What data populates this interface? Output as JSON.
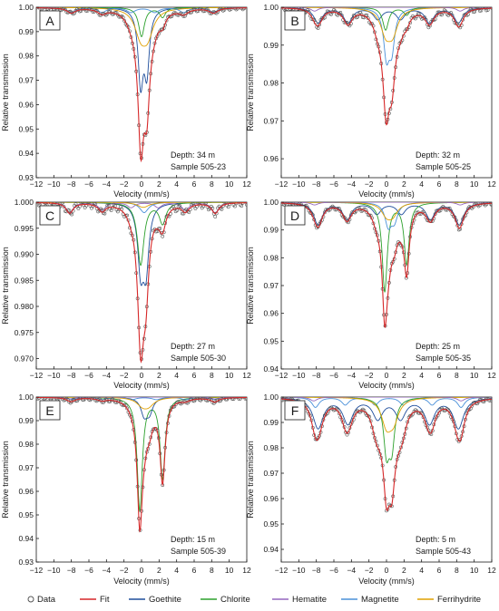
{
  "figure": {
    "legend": [
      {
        "label": "Data",
        "kind": "marker",
        "color": "#555555"
      },
      {
        "label": "Fit",
        "kind": "line",
        "color": "#d62728"
      },
      {
        "label": "Goethite",
        "kind": "line",
        "color": "#1f4e9c"
      },
      {
        "label": "Chlorite",
        "kind": "line",
        "color": "#2ca02c"
      },
      {
        "label": "Hematite",
        "kind": "line",
        "color": "#9467bd"
      },
      {
        "label": "Magnetite",
        "kind": "line",
        "color": "#4a90d9"
      },
      {
        "label": "Ferrihydrite",
        "kind": "line",
        "color": "#e0a000"
      }
    ]
  },
  "chart_data": [
    {
      "type": "scatter",
      "panel_label": "A",
      "xlabel": "Velocity (mm/s)",
      "ylabel": "Relative transmission",
      "xlim": [
        -12,
        12
      ],
      "ylim": [
        0.93,
        1.0
      ],
      "xticks": [
        -12,
        -10,
        -8,
        -6,
        -4,
        -2,
        0,
        2,
        4,
        6,
        8,
        10,
        12
      ],
      "yticks": [
        0.93,
        0.94,
        0.95,
        0.96,
        0.97,
        0.98,
        0.99,
        1.0
      ],
      "yticklabels": [
        "0.93",
        "0.94",
        "0.95",
        "0.96",
        "0.97",
        "0.98",
        "0.99",
        "1.00"
      ],
      "annotation": [
        "Depth: 34 m",
        "Sample 505-23"
      ],
      "components": [
        {
          "name": "Goethite",
          "peaks": [
            [
              -0.1,
              0.03
            ],
            [
              0.6,
              0.025
            ]
          ],
          "width": 0.35
        },
        {
          "name": "Chlorite",
          "peaks": [
            [
              0.0,
              0.012
            ],
            [
              2.4,
              0.004
            ]
          ],
          "width": 0.4
        },
        {
          "name": "Ferrihydrite",
          "peaks": [
            [
              -0.1,
              0.01
            ],
            [
              0.7,
              0.01
            ]
          ],
          "width": 0.8
        },
        {
          "name": "Magnetite",
          "peaks": [
            [
              -8,
              0.002
            ],
            [
              -4.5,
              0.002
            ],
            [
              -1.2,
              0.002
            ],
            [
              1.5,
              0.002
            ],
            [
              4.8,
              0.002
            ],
            [
              8.2,
              0.002
            ]
          ],
          "width": 0.6
        }
      ]
    },
    {
      "type": "scatter",
      "panel_label": "B",
      "xlabel": "Velocity (mm/s)",
      "ylabel": "Relative transmission",
      "xlim": [
        -12,
        12
      ],
      "ylim": [
        0.955,
        1.0
      ],
      "xticks": [
        -12,
        -10,
        -8,
        -6,
        -4,
        -2,
        0,
        2,
        4,
        6,
        8,
        10,
        12
      ],
      "yticks": [
        0.96,
        0.97,
        0.98,
        0.99,
        1.0
      ],
      "yticklabels": [
        "0.96",
        "0.97",
        "0.98",
        "0.99",
        "1.00"
      ],
      "annotation": [
        "Depth: 32 m",
        "Sample 505-25"
      ],
      "components": [
        {
          "name": "Goethite",
          "peaks": [
            [
              -7.8,
              0.004
            ],
            [
              -4.4,
              0.004
            ],
            [
              -1.0,
              0.003
            ],
            [
              1.6,
              0.003
            ],
            [
              4.9,
              0.004
            ],
            [
              8.2,
              0.004
            ]
          ],
          "width": 0.6
        },
        {
          "name": "Magnetite",
          "peaks": [
            [
              0.0,
              0.012
            ],
            [
              0.6,
              0.01
            ]
          ],
          "width": 0.4
        },
        {
          "name": "Chlorite",
          "peaks": [
            [
              -0.1,
              0.006
            ],
            [
              2.3,
              0.002
            ]
          ],
          "width": 0.4
        },
        {
          "name": "Ferrihydrite",
          "peaks": [
            [
              -0.1,
              0.006
            ],
            [
              0.7,
              0.006
            ]
          ],
          "width": 0.7
        },
        {
          "name": "Hematite",
          "peaks": [
            [
              -8.2,
              0.001
            ],
            [
              8.4,
              0.001
            ]
          ],
          "width": 0.5
        }
      ]
    },
    {
      "type": "scatter",
      "panel_label": "C",
      "xlabel": "Velocity (mm/s)",
      "ylabel": "Relative transmission",
      "xlim": [
        -12,
        12
      ],
      "ylim": [
        0.968,
        1.0
      ],
      "xticks": [
        -12,
        -10,
        -8,
        -6,
        -4,
        -2,
        0,
        2,
        4,
        6,
        8,
        10,
        12
      ],
      "yticks": [
        0.97,
        0.975,
        0.98,
        0.985,
        0.99,
        0.995,
        1.0
      ],
      "yticklabels": [
        "0.970",
        "0.975",
        "0.980",
        "0.985",
        "0.990",
        "0.995",
        "1.000"
      ],
      "annotation": [
        "Depth: 27 m",
        "Sample 505-30"
      ],
      "components": [
        {
          "name": "Goethite",
          "peaks": [
            [
              -0.1,
              0.012
            ],
            [
              0.5,
              0.012
            ]
          ],
          "width": 0.4
        },
        {
          "name": "Chlorite",
          "peaks": [
            [
              -0.1,
              0.012
            ],
            [
              2.4,
              0.004
            ]
          ],
          "width": 0.45
        },
        {
          "name": "Hematite",
          "peaks": [
            [
              -8.2,
              0.002
            ],
            [
              -4.5,
              0.0015
            ],
            [
              -1.2,
              0.001
            ],
            [
              1.9,
              0.001
            ],
            [
              5.0,
              0.0015
            ],
            [
              8.4,
              0.002
            ]
          ],
          "width": 0.5
        },
        {
          "name": "Magnetite",
          "peaks": [
            [
              0.3,
              0.002
            ]
          ],
          "width": 0.6
        },
        {
          "name": "Ferrihydrite",
          "peaks": [
            [
              0.2,
              0.001
            ]
          ],
          "width": 0.8
        }
      ]
    },
    {
      "type": "scatter",
      "panel_label": "D",
      "xlabel": "Velocity (mm/s)",
      "ylabel": "Relative transmission",
      "xlim": [
        -12,
        12
      ],
      "ylim": [
        0.94,
        1.0
      ],
      "xticks": [
        -12,
        -10,
        -8,
        -6,
        -4,
        -2,
        0,
        2,
        4,
        6,
        8,
        10,
        12
      ],
      "yticks": [
        0.94,
        0.95,
        0.96,
        0.97,
        0.98,
        0.99,
        1.0
      ],
      "yticklabels": [
        "0.94",
        "0.95",
        "0.96",
        "0.97",
        "0.98",
        "0.99",
        "1.00"
      ],
      "annotation": [
        "Depth: 25 m",
        "Sample 505-35"
      ],
      "components": [
        {
          "name": "Goethite",
          "peaks": [
            [
              -7.8,
              0.008
            ],
            [
              -4.5,
              0.006
            ],
            [
              -1.1,
              0.004
            ],
            [
              1.7,
              0.004
            ],
            [
              5.0,
              0.006
            ],
            [
              8.3,
              0.008
            ]
          ],
          "width": 0.6
        },
        {
          "name": "Chlorite",
          "peaks": [
            [
              -0.2,
              0.032
            ],
            [
              2.3,
              0.022
            ]
          ],
          "width": 0.35
        },
        {
          "name": "Magnetite",
          "peaks": [
            [
              0.2,
              0.008
            ],
            [
              0.9,
              0.006
            ]
          ],
          "width": 0.45
        },
        {
          "name": "Ferrihydrite",
          "peaks": [
            [
              0.0,
              0.004
            ],
            [
              0.7,
              0.004
            ]
          ],
          "width": 0.7
        },
        {
          "name": "Hematite",
          "peaks": [
            [
              -8.2,
              0.001
            ],
            [
              8.4,
              0.001
            ]
          ],
          "width": 0.5
        }
      ]
    },
    {
      "type": "scatter",
      "panel_label": "E",
      "xlabel": "Velocity (mm/s)",
      "ylabel": "Relative transmission",
      "xlim": [
        -12,
        12
      ],
      "ylim": [
        0.93,
        1.0
      ],
      "xticks": [
        -12,
        -10,
        -8,
        -6,
        -4,
        -2,
        0,
        2,
        4,
        6,
        8,
        10,
        12
      ],
      "yticks": [
        0.93,
        0.94,
        0.95,
        0.96,
        0.97,
        0.98,
        0.99,
        1.0
      ],
      "yticklabels": [
        "0.93",
        "0.94",
        "0.95",
        "0.96",
        "0.97",
        "0.98",
        "0.99",
        "1.00"
      ],
      "annotation": [
        "Depth: 15 m",
        "Sample 505-39"
      ],
      "components": [
        {
          "name": "Chlorite",
          "peaks": [
            [
              -0.2,
              0.048
            ],
            [
              2.4,
              0.034
            ]
          ],
          "width": 0.35
        },
        {
          "name": "Goethite",
          "peaks": [
            [
              0.3,
              0.007
            ],
            [
              0.9,
              0.006
            ]
          ],
          "width": 0.45
        },
        {
          "name": "Magnetite",
          "peaks": [
            [
              -7.9,
              0.001
            ],
            [
              -4.5,
              0.001
            ],
            [
              -1.1,
              0.001
            ],
            [
              1.7,
              0.001
            ],
            [
              5.0,
              0.001
            ],
            [
              8.3,
              0.001
            ]
          ],
          "width": 0.6
        },
        {
          "name": "Ferrihydrite",
          "peaks": [
            [
              0.1,
              0.003
            ],
            [
              0.8,
              0.003
            ]
          ],
          "width": 0.8
        },
        {
          "name": "Hematite",
          "peaks": [
            [
              -8.2,
              0.0008
            ],
            [
              8.4,
              0.0008
            ]
          ],
          "width": 0.5
        }
      ]
    },
    {
      "type": "scatter",
      "panel_label": "F",
      "xlabel": "Velocity (mm/s)",
      "ylabel": "Relative transmission",
      "xlim": [
        -12,
        12
      ],
      "ylim": [
        0.935,
        1.0
      ],
      "xticks": [
        -12,
        -10,
        -8,
        -6,
        -4,
        -2,
        0,
        2,
        4,
        6,
        8,
        10,
        12
      ],
      "yticks": [
        0.94,
        0.95,
        0.96,
        0.97,
        0.98,
        0.99,
        1.0
      ],
      "yticklabels": [
        "0.94",
        "0.95",
        "0.96",
        "0.97",
        "0.98",
        "0.99",
        "1.00"
      ],
      "annotation": [
        "Depth: 5 m",
        "Sample 505-43"
      ],
      "components": [
        {
          "name": "Goethite",
          "peaks": [
            [
              -7.8,
              0.012
            ],
            [
              -4.4,
              0.01
            ],
            [
              -1.0,
              0.008
            ],
            [
              1.6,
              0.008
            ],
            [
              4.9,
              0.01
            ],
            [
              8.2,
              0.012
            ]
          ],
          "width": 0.7
        },
        {
          "name": "Magnetite",
          "peaks": [
            [
              -8.1,
              0.004
            ],
            [
              -4.7,
              0.003
            ],
            [
              -1.3,
              0.003
            ],
            [
              1.9,
              0.003
            ],
            [
              5.2,
              0.003
            ],
            [
              8.5,
              0.004
            ]
          ],
          "width": 0.5
        },
        {
          "name": "Chlorite",
          "peaks": [
            [
              0.0,
              0.02
            ],
            [
              0.6,
              0.018
            ]
          ],
          "width": 0.4
        },
        {
          "name": "Ferrihydrite",
          "peaks": [
            [
              0.0,
              0.01
            ],
            [
              0.8,
              0.008
            ]
          ],
          "width": 0.7
        },
        {
          "name": "Hematite",
          "peaks": [
            [
              -8.3,
              0.0015
            ],
            [
              8.5,
              0.0015
            ]
          ],
          "width": 0.5
        }
      ]
    }
  ]
}
